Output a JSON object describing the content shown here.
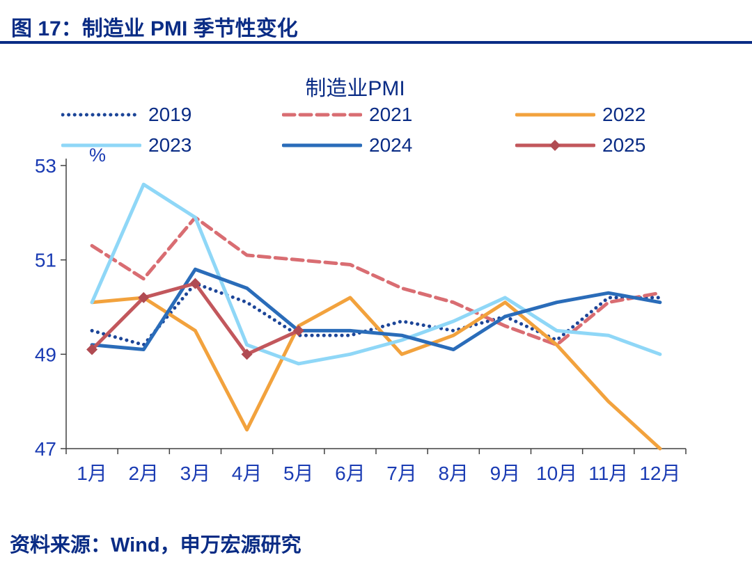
{
  "header": {
    "title": "图 17：制造业 PMI 季节性变化"
  },
  "footer": {
    "source": "资料来源：Wind，申万宏源研究"
  },
  "colors": {
    "title_navy": "#0a2c85",
    "axis_label_blue": "#1a3bb3",
    "axis_line": "#404040"
  },
  "chart_data": {
    "type": "line",
    "title": "制造业PMI",
    "xlabel": "",
    "ylabel": "%",
    "ylim": [
      47,
      53
    ],
    "yticks": [
      53,
      51,
      49,
      47
    ],
    "grid": false,
    "legend_position": "top",
    "categories": [
      "1月",
      "2月",
      "3月",
      "4月",
      "5月",
      "6月",
      "7月",
      "8月",
      "9月",
      "10月",
      "11月",
      "12月"
    ],
    "series": [
      {
        "name": "2019",
        "style": "dotted",
        "marker": "none",
        "color": "#1c4598",
        "values": [
          49.5,
          49.2,
          50.5,
          50.1,
          49.4,
          49.4,
          49.7,
          49.5,
          49.8,
          49.3,
          50.2,
          50.2
        ]
      },
      {
        "name": "2021",
        "style": "dashed",
        "marker": "none",
        "color": "#d96d72",
        "values": [
          51.3,
          50.6,
          51.9,
          51.1,
          51.0,
          50.9,
          50.4,
          50.1,
          49.6,
          49.2,
          50.1,
          50.3
        ]
      },
      {
        "name": "2022",
        "style": "solid",
        "marker": "none",
        "color": "#f2a23d",
        "values": [
          50.1,
          50.2,
          49.5,
          47.4,
          49.6,
          50.2,
          49.0,
          49.4,
          50.1,
          49.2,
          48.0,
          47.0
        ]
      },
      {
        "name": "2023",
        "style": "solid",
        "marker": "none",
        "color": "#8fd7f7",
        "values": [
          50.1,
          52.6,
          51.9,
          49.2,
          48.8,
          49.0,
          49.3,
          49.7,
          50.2,
          49.5,
          49.4,
          49.0
        ]
      },
      {
        "name": "2024",
        "style": "solid",
        "marker": "none",
        "color": "#2a6cb9",
        "values": [
          49.2,
          49.1,
          50.8,
          50.4,
          49.5,
          49.5,
          49.4,
          49.1,
          49.8,
          50.1,
          50.3,
          50.1
        ]
      },
      {
        "name": "2025",
        "style": "solid",
        "marker": "diamond",
        "marker_color": "#b04b52",
        "color": "#c2575c",
        "values": [
          49.1,
          50.2,
          50.5,
          49.0,
          49.5
        ]
      }
    ]
  }
}
